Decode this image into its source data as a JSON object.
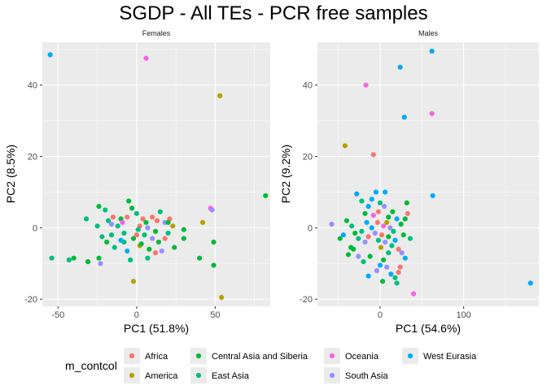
{
  "title": "SGDP - All TEs - PCR free samples",
  "legend": {
    "title": "m_contcol",
    "placement": "bottom",
    "entries": [
      {
        "label": "Africa",
        "color": "#F8766D"
      },
      {
        "label": "America",
        "color": "#B79F00"
      },
      {
        "label": "Central Asia and Siberia",
        "color": "#00BA38"
      },
      {
        "label": "East Asia",
        "color": "#00BF7D"
      },
      {
        "label": "Oceania",
        "color": "#F564E3"
      },
      {
        "label": "South Asia",
        "color": "#9590FF"
      },
      {
        "label": "West Eurasia",
        "color": "#00A9FF"
      }
    ]
  },
  "chart_data": [
    {
      "type": "scatter",
      "panel": "Females",
      "xlabel": "PC1 (51.8%)",
      "ylabel": "PC2 (8.5%)",
      "xlim": [
        -60,
        85
      ],
      "ylim": [
        -22,
        52
      ],
      "xticks": [
        -50,
        0,
        50
      ],
      "yticks": [
        -20,
        0,
        20,
        40
      ],
      "grid": true,
      "points": [
        {
          "x": -55,
          "y": 48.5,
          "group": "West Eurasia"
        },
        {
          "x": 6,
          "y": 47.5,
          "group": "Oceania"
        },
        {
          "x": 53,
          "y": 37,
          "group": "America"
        },
        {
          "x": 82,
          "y": 9,
          "group": "Central Asia and Siberia"
        },
        {
          "x": 47,
          "y": 5.5,
          "group": "Oceania"
        },
        {
          "x": 48,
          "y": 5,
          "group": "South Asia"
        },
        {
          "x": 42,
          "y": 1.5,
          "group": "America"
        },
        {
          "x": 30,
          "y": -0.5,
          "group": "Central Asia and Siberia"
        },
        {
          "x": 49,
          "y": -4,
          "group": "Central Asia and Siberia"
        },
        {
          "x": 40,
          "y": -8.5,
          "group": "Central Asia and Siberia"
        },
        {
          "x": 49,
          "y": -10.5,
          "group": "Central Asia and Siberia"
        },
        {
          "x": 54,
          "y": -19.5,
          "group": "America"
        },
        {
          "x": 24,
          "y": -5.5,
          "group": "Central Asia and Siberia"
        },
        {
          "x": 30,
          "y": -3,
          "group": "Central Asia and Siberia"
        },
        {
          "x": -54,
          "y": -8.5,
          "group": "East Asia"
        },
        {
          "x": -43,
          "y": -9,
          "group": "East Asia"
        },
        {
          "x": -40,
          "y": -8.5,
          "group": "Central Asia and Siberia"
        },
        {
          "x": -31,
          "y": -9.5,
          "group": "Central Asia and Siberia"
        },
        {
          "x": -32,
          "y": 2.5,
          "group": "East Asia"
        },
        {
          "x": -24,
          "y": 6,
          "group": "Central Asia and Siberia"
        },
        {
          "x": -23,
          "y": -10,
          "group": "South Asia"
        },
        {
          "x": -24,
          "y": -8.5,
          "group": "Central Asia and Siberia"
        },
        {
          "x": -20,
          "y": 5,
          "group": "East Asia"
        },
        {
          "x": -18,
          "y": 2,
          "group": "East Asia"
        },
        {
          "x": -15,
          "y": 3,
          "group": "Africa"
        },
        {
          "x": -12,
          "y": 0.5,
          "group": "East Asia"
        },
        {
          "x": -10,
          "y": 2.5,
          "group": "Central Asia and Siberia"
        },
        {
          "x": -8,
          "y": -1.5,
          "group": "East Asia"
        },
        {
          "x": -5,
          "y": 7.5,
          "group": "Central Asia and Siberia"
        },
        {
          "x": -3,
          "y": 5.5,
          "group": "Central Asia and Siberia"
        },
        {
          "x": 0,
          "y": 4,
          "group": "East Asia"
        },
        {
          "x": 2,
          "y": 0.5,
          "group": "Africa"
        },
        {
          "x": 4,
          "y": 2.5,
          "group": "Africa"
        },
        {
          "x": 7,
          "y": 0,
          "group": "South Asia"
        },
        {
          "x": 10,
          "y": 3,
          "group": "Africa"
        },
        {
          "x": 13,
          "y": 2,
          "group": "Africa"
        },
        {
          "x": 15,
          "y": 4.5,
          "group": "East Asia"
        },
        {
          "x": 18,
          "y": 1.5,
          "group": "South Asia"
        },
        {
          "x": 21,
          "y": 2.5,
          "group": "Africa"
        },
        {
          "x": 20,
          "y": 1.5,
          "group": "Central Asia and Siberia"
        },
        {
          "x": -25,
          "y": 0.5,
          "group": "East Asia"
        },
        {
          "x": -22,
          "y": -2.5,
          "group": "East Asia"
        },
        {
          "x": -19,
          "y": -4,
          "group": "Central Asia and Siberia"
        },
        {
          "x": -16,
          "y": -2,
          "group": "East Asia"
        },
        {
          "x": -14,
          "y": -5.5,
          "group": "East Asia"
        },
        {
          "x": -10,
          "y": -3.5,
          "group": "West Eurasia"
        },
        {
          "x": -8,
          "y": -4,
          "group": "East Asia"
        },
        {
          "x": -6,
          "y": -6.5,
          "group": "West Eurasia"
        },
        {
          "x": -4,
          "y": -9,
          "group": "East Asia"
        },
        {
          "x": -2,
          "y": -3,
          "group": "Central Asia and Siberia"
        },
        {
          "x": 0,
          "y": -2,
          "group": "Africa"
        },
        {
          "x": 2,
          "y": -5,
          "group": "America"
        },
        {
          "x": 3,
          "y": -4.5,
          "group": "Central Asia and Siberia"
        },
        {
          "x": 5,
          "y": -2,
          "group": "East Asia"
        },
        {
          "x": 7,
          "y": -8.5,
          "group": "East Asia"
        },
        {
          "x": 8,
          "y": -6,
          "group": "Central Asia and Siberia"
        },
        {
          "x": 10,
          "y": -3,
          "group": "South Asia"
        },
        {
          "x": 12,
          "y": -1,
          "group": "Central Asia and Siberia"
        },
        {
          "x": 14,
          "y": -4,
          "group": "Central Asia and Siberia"
        },
        {
          "x": 16,
          "y": -6.5,
          "group": "South Asia"
        },
        {
          "x": 18,
          "y": -3,
          "group": "Africa"
        },
        {
          "x": 20,
          "y": -1.5,
          "group": "East Asia"
        },
        {
          "x": 12,
          "y": -7,
          "group": "Africa"
        },
        {
          "x": -2,
          "y": -15,
          "group": "America"
        },
        {
          "x": -9,
          "y": 1.5,
          "group": "Oceania"
        },
        {
          "x": -6,
          "y": 3,
          "group": "Africa"
        },
        {
          "x": 1,
          "y": -0.5,
          "group": "East Asia"
        },
        {
          "x": -16,
          "y": 1,
          "group": "South Asia"
        },
        {
          "x": 6,
          "y": 1.5,
          "group": "Central Asia and Siberia"
        },
        {
          "x": 23,
          "y": 0.5,
          "group": "America"
        }
      ]
    },
    {
      "type": "scatter",
      "panel": "Males",
      "xlabel": "PC1 (54.6%)",
      "ylabel": "PC2 (9.2%)",
      "xlim": [
        -75,
        190
      ],
      "ylim": [
        -22,
        52
      ],
      "xticks": [
        0,
        100
      ],
      "yticks": [
        -20,
        0,
        20,
        40
      ],
      "grid": true,
      "points": [
        {
          "x": 62,
          "y": 49.5,
          "group": "West Eurasia"
        },
        {
          "x": 24,
          "y": 45,
          "group": "West Eurasia"
        },
        {
          "x": -17,
          "y": 40,
          "group": "Oceania"
        },
        {
          "x": 62,
          "y": 32,
          "group": "Oceania"
        },
        {
          "x": 29,
          "y": 31,
          "group": "West Eurasia"
        },
        {
          "x": -42,
          "y": 23,
          "group": "America"
        },
        {
          "x": -8,
          "y": 20.5,
          "group": "Africa"
        },
        {
          "x": 63,
          "y": 9,
          "group": "West Eurasia"
        },
        {
          "x": 180,
          "y": -15.5,
          "group": "West Eurasia"
        },
        {
          "x": 40,
          "y": -18.5,
          "group": "Oceania"
        },
        {
          "x": -58,
          "y": 1,
          "group": "South Asia"
        },
        {
          "x": -48,
          "y": -3,
          "group": "Central Asia and Siberia"
        },
        {
          "x": -35,
          "y": -5.5,
          "group": "Central Asia and Siberia"
        },
        {
          "x": -28,
          "y": 9.5,
          "group": "West Eurasia"
        },
        {
          "x": -22,
          "y": 7.5,
          "group": "East Asia"
        },
        {
          "x": -18,
          "y": 4,
          "group": "Central Asia and Siberia"
        },
        {
          "x": -14,
          "y": 6,
          "group": "West Eurasia"
        },
        {
          "x": -10,
          "y": 8,
          "group": "West Eurasia"
        },
        {
          "x": -5,
          "y": 10,
          "group": "West Eurasia"
        },
        {
          "x": 0,
          "y": 7,
          "group": "East Asia"
        },
        {
          "x": 5,
          "y": 6,
          "group": "South Asia"
        },
        {
          "x": 10,
          "y": 3,
          "group": "Central Asia and Siberia"
        },
        {
          "x": 15,
          "y": 4.5,
          "group": "Central Asia and Siberia"
        },
        {
          "x": 20,
          "y": 2.5,
          "group": "West Eurasia"
        },
        {
          "x": 25,
          "y": 1,
          "group": "Central Asia and Siberia"
        },
        {
          "x": 30,
          "y": 2.5,
          "group": "Central Asia and Siberia"
        },
        {
          "x": 33,
          "y": 4,
          "group": "Africa"
        },
        {
          "x": 32,
          "y": 7,
          "group": "Central Asia and Siberia"
        },
        {
          "x": -40,
          "y": 2,
          "group": "Central Asia and Siberia"
        },
        {
          "x": -34,
          "y": 0.5,
          "group": "East Asia"
        },
        {
          "x": -30,
          "y": -1.5,
          "group": "Central Asia and Siberia"
        },
        {
          "x": -26,
          "y": -3,
          "group": "East Asia"
        },
        {
          "x": -22,
          "y": -1,
          "group": "East Asia"
        },
        {
          "x": -18,
          "y": -4,
          "group": "South Asia"
        },
        {
          "x": -14,
          "y": -2.5,
          "group": "Africa"
        },
        {
          "x": -10,
          "y": 0,
          "group": "West Eurasia"
        },
        {
          "x": -6,
          "y": -1.5,
          "group": "South Asia"
        },
        {
          "x": -2,
          "y": -3.5,
          "group": "East Asia"
        },
        {
          "x": 2,
          "y": -2,
          "group": "Africa"
        },
        {
          "x": 6,
          "y": -4,
          "group": "South Asia"
        },
        {
          "x": 10,
          "y": -2.5,
          "group": "Central Asia and Siberia"
        },
        {
          "x": 14,
          "y": -5,
          "group": "East Asia"
        },
        {
          "x": 18,
          "y": -3.5,
          "group": "West Eurasia"
        },
        {
          "x": 22,
          "y": -6,
          "group": "Africa"
        },
        {
          "x": 26,
          "y": -7,
          "group": "South Asia"
        },
        {
          "x": 30,
          "y": -8.5,
          "group": "West Eurasia"
        },
        {
          "x": 24,
          "y": -11,
          "group": "Africa"
        },
        {
          "x": 22,
          "y": -12.5,
          "group": "Africa"
        },
        {
          "x": 18,
          "y": -14,
          "group": "East Asia"
        },
        {
          "x": 20,
          "y": -15.5,
          "group": "East Asia"
        },
        {
          "x": 13,
          "y": -13,
          "group": "West Eurasia"
        },
        {
          "x": 8,
          "y": -11,
          "group": "South Asia"
        },
        {
          "x": 4,
          "y": -9,
          "group": "Central Asia and Siberia"
        },
        {
          "x": 0,
          "y": -10.5,
          "group": "West Eurasia"
        },
        {
          "x": -4,
          "y": -12,
          "group": "South Asia"
        },
        {
          "x": 3,
          "y": -15,
          "group": "Central Asia and Siberia"
        },
        {
          "x": -14,
          "y": -13.5,
          "group": "West Eurasia"
        },
        {
          "x": -12,
          "y": -8,
          "group": "Central Asia and Siberia"
        },
        {
          "x": -20,
          "y": -9.5,
          "group": "East Asia"
        },
        {
          "x": -26,
          "y": -8,
          "group": "South Asia"
        },
        {
          "x": -32,
          "y": -6,
          "group": "Central Asia and Siberia"
        },
        {
          "x": -38,
          "y": -7.5,
          "group": "Central Asia and Siberia"
        },
        {
          "x": -8,
          "y": 3.5,
          "group": "Oceania"
        },
        {
          "x": -3,
          "y": 1.5,
          "group": "Africa"
        },
        {
          "x": 4,
          "y": 0.5,
          "group": "Oceania"
        },
        {
          "x": 8,
          "y": 1.5,
          "group": "America"
        },
        {
          "x": 12,
          "y": 0,
          "group": "South Asia"
        },
        {
          "x": 16,
          "y": -1,
          "group": "East Asia"
        },
        {
          "x": -16,
          "y": 1.5,
          "group": "West Eurasia"
        },
        {
          "x": -2,
          "y": 4.5,
          "group": "Africa"
        },
        {
          "x": 28,
          "y": -2,
          "group": "Central Asia and Siberia"
        },
        {
          "x": 36,
          "y": -3,
          "group": "East Asia"
        },
        {
          "x": -44,
          "y": -2,
          "group": "West Eurasia"
        },
        {
          "x": 1,
          "y": -5.5,
          "group": "America"
        },
        {
          "x": 10,
          "y": -7,
          "group": "East Asia"
        },
        {
          "x": 6,
          "y": 10,
          "group": "West Eurasia"
        }
      ]
    }
  ]
}
